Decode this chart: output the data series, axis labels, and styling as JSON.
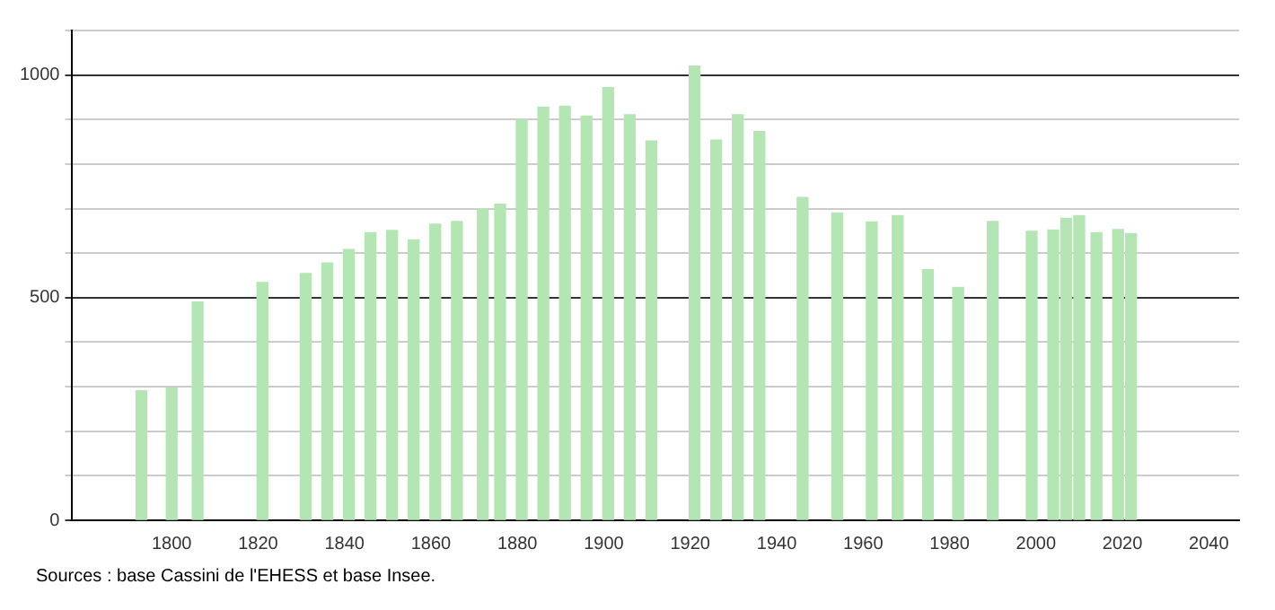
{
  "chart_data": {
    "type": "bar",
    "x": [
      1793,
      1800,
      1806,
      1821,
      1831,
      1836,
      1841,
      1846,
      1851,
      1856,
      1861,
      1866,
      1872,
      1876,
      1881,
      1886,
      1891,
      1896,
      1901,
      1906,
      1911,
      1921,
      1926,
      1931,
      1936,
      1946,
      1954,
      1962,
      1968,
      1975,
      1982,
      1990,
      1999,
      2004,
      2007,
      2010,
      2014,
      2019,
      2022
    ],
    "values": [
      291,
      297,
      490,
      534,
      554,
      578,
      608,
      646,
      651,
      630,
      665,
      671,
      699,
      710,
      899,
      928,
      930,
      908,
      972,
      911,
      852,
      1020,
      854,
      911,
      873,
      725,
      690,
      670,
      684,
      563,
      523,
      671,
      649,
      652,
      678,
      684,
      646,
      653,
      644
    ],
    "color": "#b3e6b3",
    "xlim": [
      1777,
      2047
    ],
    "xticks": [
      1800,
      1820,
      1840,
      1860,
      1880,
      1900,
      1920,
      1940,
      1960,
      1980,
      2000,
      2020,
      2040
    ],
    "ylim": [
      0,
      1100
    ],
    "yticks": [
      0,
      {
        "value": 100,
        "label": null
      },
      {
        "value": 200,
        "label": null
      },
      {
        "value": 300,
        "label": null
      },
      {
        "value": 400,
        "label": null
      },
      500,
      {
        "value": 600,
        "label": null
      },
      {
        "value": 700,
        "label": null
      },
      {
        "value": 800,
        "label": null
      },
      {
        "value": 900,
        "label": null
      },
      1000,
      {
        "value": 1100,
        "label": null
      }
    ],
    "grid": "y",
    "annotations": [
      "Sources : base Cassini de l'EHESS et base Insee."
    ]
  }
}
